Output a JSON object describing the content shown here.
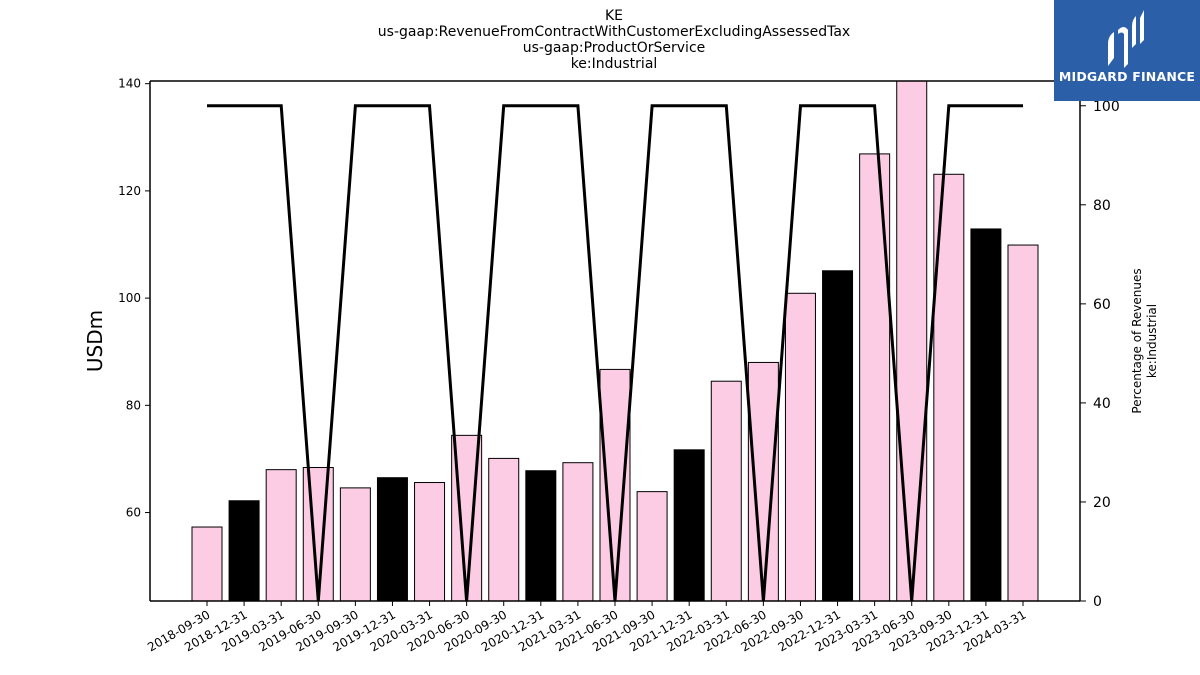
{
  "chart_data": {
    "type": "bar",
    "title_lines": [
      "KE",
      "us-gaap:RevenueFromContractWithCustomerExcludingAssessedTax",
      "us-gaap:ProductOrService",
      "ke:Industrial"
    ],
    "ylabel": "USDm",
    "ylabel_right": [
      "Percentage of Revenues",
      "ke:Industrial"
    ],
    "categories": [
      "2018-09-30",
      "2018-12-31",
      "2019-03-31",
      "2019-06-30",
      "2019-09-30",
      "2019-12-31",
      "2020-03-31",
      "2020-06-30",
      "2020-09-30",
      "2020-12-31",
      "2021-03-31",
      "2021-06-30",
      "2021-09-30",
      "2021-12-31",
      "2022-03-31",
      "2022-06-30",
      "2022-09-30",
      "2022-12-31",
      "2023-03-31",
      "2023-06-30",
      "2023-09-30",
      "2023-12-31",
      "2024-03-31"
    ],
    "series": [
      {
        "values": [
          57.3,
          62.2,
          68.0,
          68.4,
          64.6,
          66.5,
          65.6,
          74.4,
          70.1,
          67.8,
          69.3,
          86.7,
          63.9,
          71.7,
          84.5,
          88.0,
          100.9,
          105.1,
          126.9,
          141.0,
          123.1,
          112.9,
          109.9
        ],
        "colors": [
          "#fccce4",
          "#000000",
          "#fccce4",
          "#fccce4",
          "#fccce4",
          "#000000",
          "#fccce4",
          "#fccce4",
          "#fccce4",
          "#000000",
          "#fccce4",
          "#fccce4",
          "#fccce4",
          "#000000",
          "#fccce4",
          "#fccce4",
          "#fccce4",
          "#000000",
          "#fccce4",
          "#fccce4",
          "#fccce4",
          "#000000",
          "#fccce4"
        ],
        "axis": "left"
      },
      {
        "type": "line",
        "values": [
          100,
          100,
          100,
          0,
          100,
          100,
          100,
          0,
          100,
          100,
          100,
          0,
          100,
          100,
          100,
          0,
          100,
          100,
          100,
          0,
          100,
          100,
          100
        ],
        "color": "#000000",
        "axis": "right"
      }
    ],
    "ylim": [
      43.5,
      140.5
    ],
    "yticks": [
      60,
      80,
      100,
      120,
      140
    ],
    "ylim_right": [
      0,
      105
    ],
    "yticks_right": [
      0,
      20,
      40,
      60,
      80,
      100
    ],
    "grid": false
  },
  "logo": {
    "text": "MIDGARD FINANCE",
    "background": "#2b5fa8"
  }
}
